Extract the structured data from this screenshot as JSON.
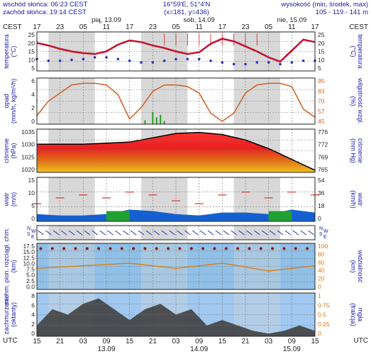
{
  "header": {
    "sunrise": "wschód słońca: 06:23 CEST",
    "sunset": "zachód słońca: 19:14 CEST",
    "coords_line1": "16°59'E, 51°4'N",
    "coords_line2": "(x=181, y=436)",
    "elevation_label": "wysokość (min, środek, max)",
    "elevation_values": "105 - 119 - 141 m"
  },
  "top_axis": {
    "tz_left": "CEST",
    "tz_right": "CEST",
    "hours": [
      "17",
      "23",
      "05",
      "11",
      "17",
      "23",
      "05",
      "11",
      "17",
      "23",
      "05",
      "11",
      "17"
    ],
    "days": [
      "pią, 13.09",
      "sob, 14.09",
      "nie, 15.09"
    ]
  },
  "bottom_axis": {
    "tz": "UTC",
    "hours": [
      "15",
      "21",
      "03",
      "09",
      "15",
      "21",
      "03",
      "09",
      "15",
      "21",
      "03",
      "09",
      "15"
    ],
    "dates": [
      "13.09",
      "14.09",
      "15.09"
    ]
  },
  "panels": {
    "temperature": {
      "left_label": "temperatura",
      "left_unit": "(°C)",
      "right_label": "temperatura",
      "right_unit": "(°C)",
      "ticks": [
        "25",
        "20",
        "15",
        "10",
        "5"
      ]
    },
    "precip": {
      "left_label": "opad",
      "left_unit": "(mm/h, kg/m²/h)",
      "right_label": "wilgotność wzgl.",
      "right_unit": "(%)",
      "left_ticks": [
        "6",
        "4",
        "2",
        "0"
      ],
      "right_ticks": [
        "95",
        "83",
        "70",
        "57",
        "45"
      ]
    },
    "pressure": {
      "left_label": "ciśnienie",
      "left_unit": "(hPa)",
      "right_label": "ciśnienie",
      "right_unit": "(mm Hg)",
      "left_ticks": [
        "1035",
        "1030",
        "1025",
        "1020"
      ],
      "right_ticks": [
        "776",
        "772",
        "769",
        "765"
      ]
    },
    "wind": {
      "left_label": "wiatr",
      "left_unit": "(m/s)",
      "right_label": "wiatr",
      "right_unit": "(km/h)",
      "left_ticks": [
        "15",
        "10",
        "5",
        "0"
      ],
      "right_ticks": [
        "54",
        "36",
        "18",
        "0"
      ]
    },
    "direction": {
      "left_letters": [
        "N",
        "W",
        "S",
        "E"
      ],
      "right_letters": [
        "N",
        "W",
        "S",
        "E"
      ]
    },
    "visibility": {
      "left_label": "zachm. pion. rozciągł. chm.",
      "left_unit": "(km)",
      "right_label": "widzialność",
      "right_unit": "(km)",
      "left_ticks": [
        "17.5",
        "15.0",
        "12.5",
        "10.0",
        "7.5",
        "5.0",
        "2.5",
        "0.0"
      ],
      "right_ticks": [
        "100",
        "80",
        "60",
        "40",
        "20",
        "0"
      ]
    },
    "clouds": {
      "left_label": "zachmurzenie",
      "left_unit": "(oktanty)",
      "right_label": "mgła",
      "right_unit": "(frakcja)",
      "left_ticks": [
        "8",
        "6",
        "4",
        "2",
        "0"
      ],
      "right_ticks": [
        "1",
        "0.75",
        "0.5",
        "0.25",
        "0"
      ]
    }
  },
  "colors": {
    "night_band": "#d8d8d8",
    "temp_line": "#c8102e",
    "dewpoint": "#3030c0",
    "rh_line": "#d06020",
    "precip_bars": "#20a020",
    "wind_area": "#1560d0",
    "gust_line": "#e03030",
    "vis_bg": "#90c0e8",
    "cloud_bg": "#a0c8f0"
  },
  "chart_data": [
    {
      "type": "line",
      "name": "temperature",
      "hours_from_start": [
        0,
        3,
        6,
        9,
        12,
        15,
        18,
        21,
        24,
        27,
        30,
        33,
        36,
        39,
        42,
        45,
        48,
        51,
        54,
        57,
        60,
        63,
        66,
        69,
        72
      ],
      "temperature_c": [
        21.5,
        20,
        18,
        16.5,
        15.5,
        15,
        16.5,
        20.5,
        23,
        22,
        20,
        18.5,
        16.5,
        15,
        16,
        21,
        24,
        22.5,
        19.5,
        16.5,
        13,
        10.5,
        17,
        23.5,
        22
      ],
      "dewpoint_c": [
        12,
        11,
        11,
        11.5,
        12,
        13,
        13,
        12,
        11,
        10,
        10,
        11,
        12,
        12,
        12,
        11,
        10,
        9,
        9,
        10,
        10,
        9,
        10,
        11,
        11
      ],
      "ylim": [
        5,
        28
      ]
    },
    {
      "type": "line",
      "name": "humidity",
      "hours_from_start": [
        0,
        3,
        6,
        9,
        12,
        15,
        18,
        21,
        24,
        27,
        30,
        33,
        36,
        39,
        42,
        45,
        48,
        51,
        54,
        57,
        60,
        63,
        66,
        69,
        72
      ],
      "relative_humidity_pct": [
        52,
        70,
        80,
        90,
        92,
        92,
        90,
        78,
        48,
        62,
        82,
        90,
        90,
        88,
        80,
        55,
        45,
        55,
        80,
        90,
        92,
        92,
        88,
        60,
        50
      ],
      "precip_hours": [
        28,
        30,
        31,
        32,
        33
      ],
      "precip_mm_h": [
        0.5,
        1.6,
        0.9,
        1.2,
        0.4
      ],
      "ylim_rh": [
        45,
        95
      ]
    },
    {
      "type": "area",
      "name": "pressure",
      "hours_from_start": [
        0,
        6,
        12,
        18,
        24,
        30,
        36,
        42,
        48,
        54,
        60,
        66,
        72
      ],
      "pressure_hpa": [
        1030,
        1030,
        1030,
        1030.5,
        1031,
        1033,
        1035,
        1035.5,
        1034.5,
        1032,
        1028,
        1023,
        1018
      ],
      "ylim": [
        1017,
        1037
      ]
    },
    {
      "type": "line",
      "name": "wind",
      "hours_from_start": [
        0,
        6,
        12,
        18,
        24,
        30,
        36,
        42,
        48,
        54,
        60,
        66,
        72
      ],
      "wind_ms": [
        2.5,
        2,
        2,
        2.5,
        4,
        3.5,
        2.5,
        2,
        3,
        3,
        2.5,
        4,
        3
      ],
      "gust_ms": [
        6,
        8,
        9,
        8,
        10,
        9,
        7,
        6,
        9,
        10,
        8,
        10,
        9
      ],
      "ylim": [
        0,
        15
      ]
    }
  ]
}
